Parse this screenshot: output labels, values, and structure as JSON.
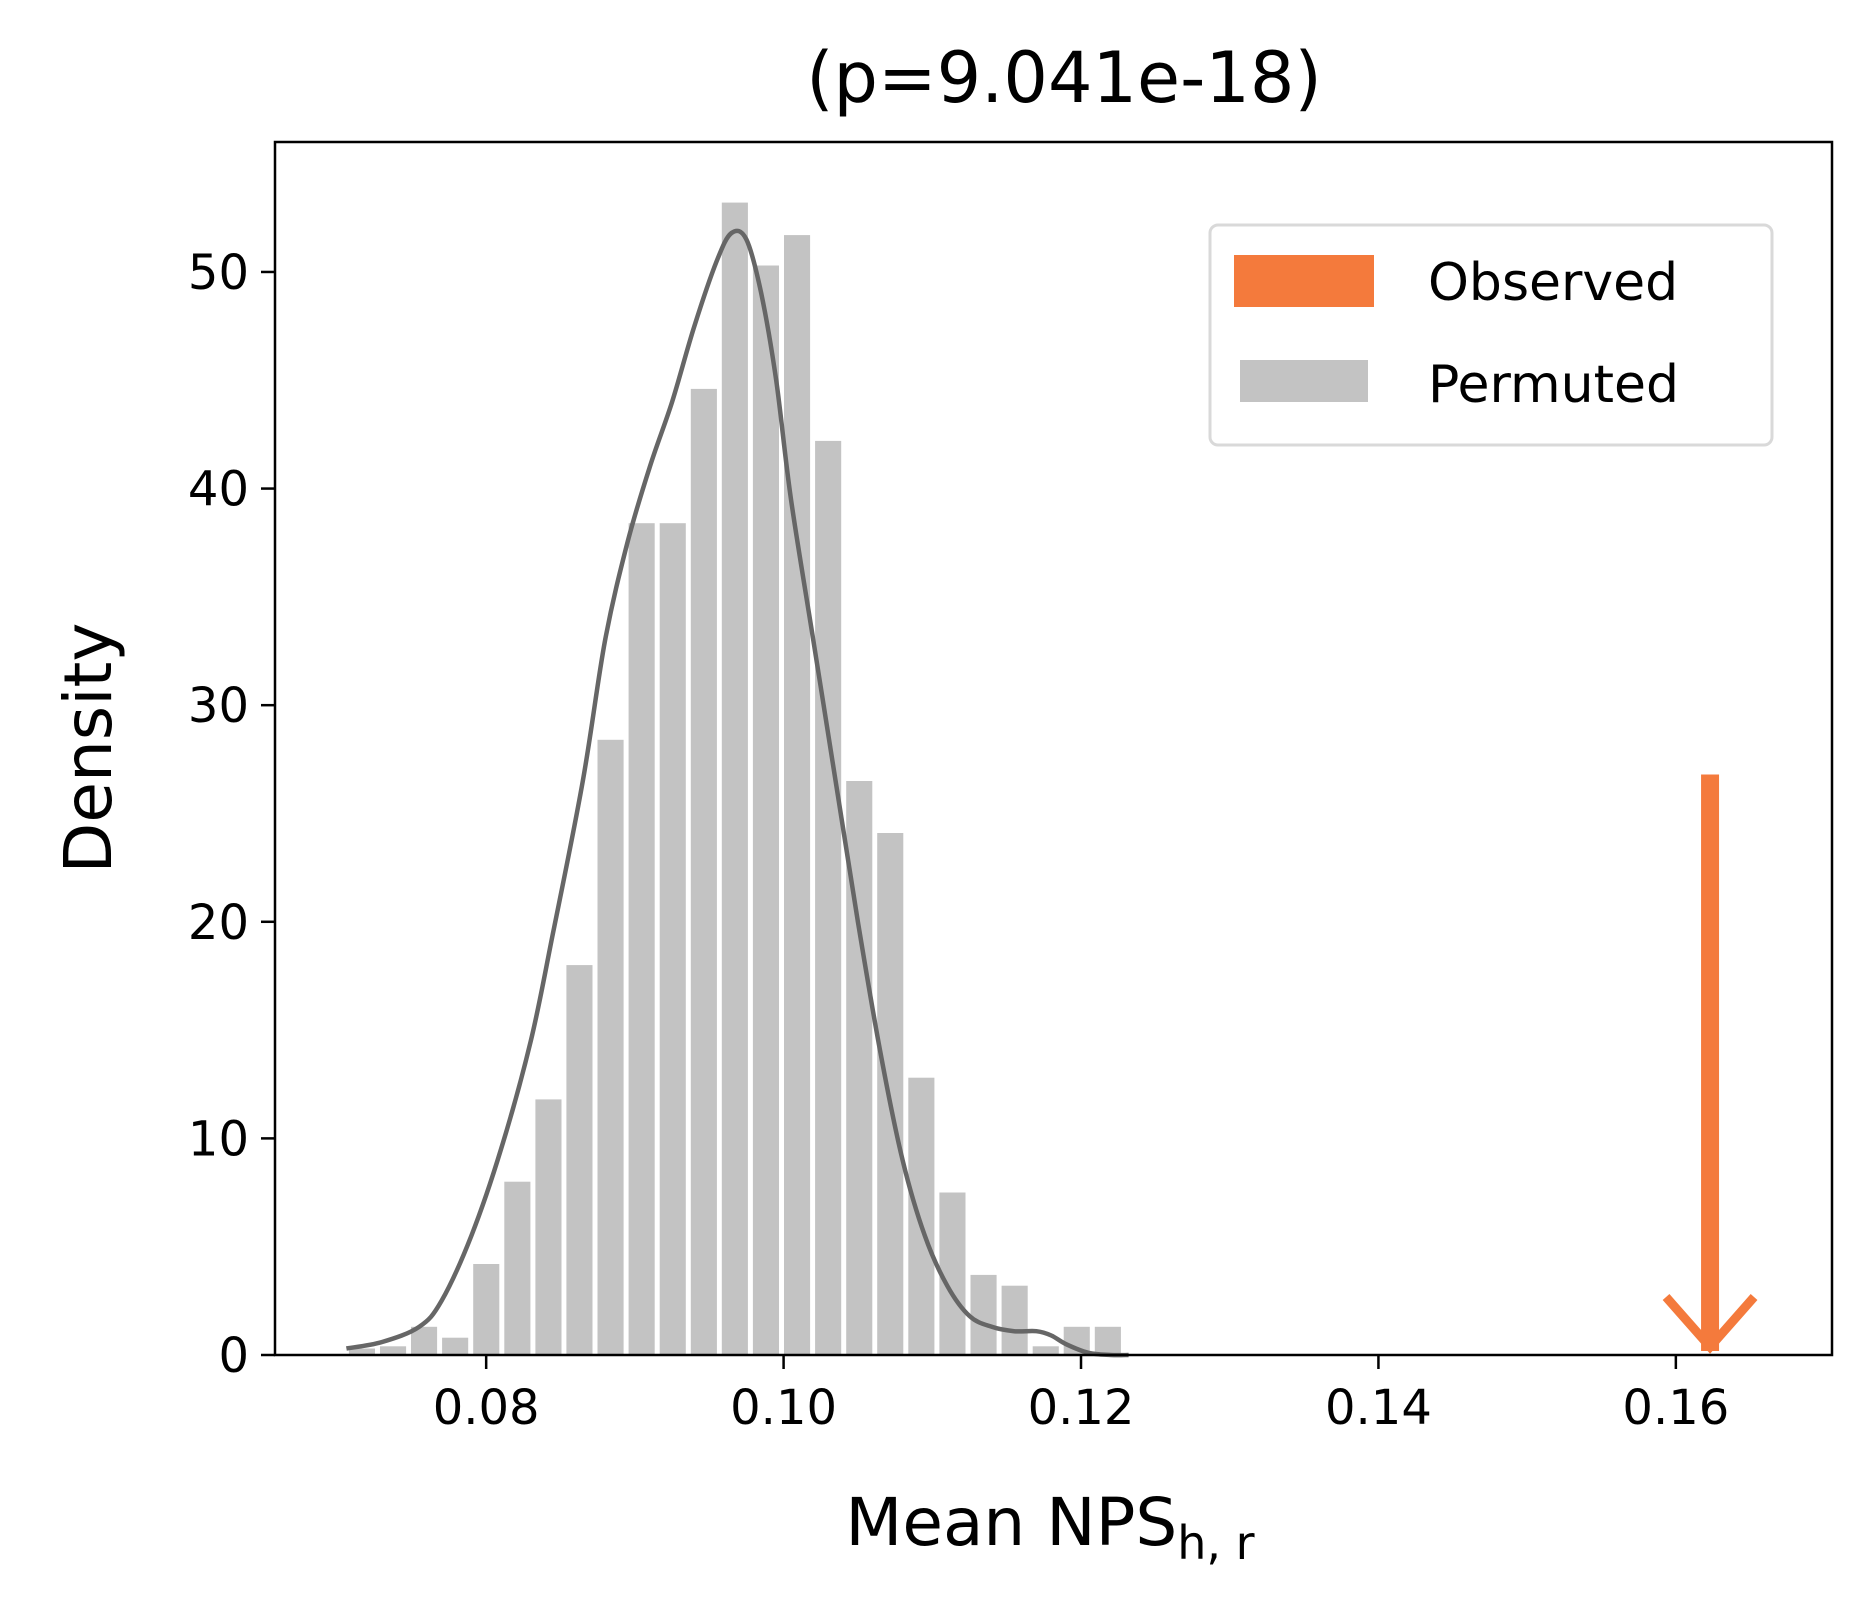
{
  "chart_data": {
    "type": "bar",
    "title": "(p=9.041e-18)",
    "xlabel": "Mean NPS",
    "xlabel_subscript": "h, r",
    "ylabel": "Density",
    "xlim": [
      0.0658,
      0.1705
    ],
    "ylim": [
      0,
      56
    ],
    "xticks": [
      0.08,
      0.1,
      0.12,
      0.14,
      0.16
    ],
    "xtick_labels": [
      "0.08",
      "0.10",
      "0.12",
      "0.14",
      "0.16"
    ],
    "yticks": [
      0,
      10,
      20,
      30,
      40,
      50
    ],
    "ytick_labels": [
      "0",
      "10",
      "20",
      "30",
      "40",
      "50"
    ],
    "grid": false,
    "legend_position": "top-right",
    "legend": [
      {
        "label": "Observed",
        "color": "#f47a3c"
      },
      {
        "label": "Permuted",
        "color": "#c3c3c3"
      }
    ],
    "histogram": {
      "name": "Permuted",
      "color": "#c3c3c3",
      "bin_start": 0.0706,
      "bin_width": 0.00209,
      "values": [
        0.3,
        0.4,
        1.3,
        0.8,
        4.2,
        8.0,
        11.8,
        18.0,
        28.4,
        38.4,
        38.4,
        44.6,
        53.2,
        50.3,
        51.7,
        42.2,
        26.5,
        24.1,
        12.8,
        7.5,
        3.7,
        3.2,
        0.4,
        1.3,
        1.3
      ]
    },
    "kde": {
      "name": "Permuted KDE",
      "color": "#666666",
      "x": [
        0.0706,
        0.073,
        0.0755,
        0.077,
        0.079,
        0.081,
        0.083,
        0.0845,
        0.0865,
        0.088,
        0.0895,
        0.091,
        0.0925,
        0.094,
        0.0955,
        0.0965,
        0.0975,
        0.0985,
        0.0995,
        0.1005,
        0.102,
        0.1035,
        0.105,
        0.1065,
        0.108,
        0.1095,
        0.111,
        0.1125,
        0.114,
        0.1155,
        0.117,
        0.118,
        0.119,
        0.1205,
        0.122,
        0.1232
      ],
      "y": [
        0.3,
        0.6,
        1.3,
        2.5,
        5.5,
        9.5,
        14.5,
        19.5,
        26.5,
        33.0,
        37.5,
        41.0,
        44.0,
        47.5,
        50.5,
        51.8,
        51.5,
        49.0,
        45.0,
        39.5,
        33.0,
        26.5,
        20.0,
        14.0,
        9.0,
        5.5,
        3.2,
        1.8,
        1.3,
        1.1,
        1.1,
        0.9,
        0.5,
        0.1,
        0.0,
        0.0
      ]
    },
    "observed": {
      "name": "Observed",
      "color": "#f47a3c",
      "x": 0.1623,
      "arrow_top": 26.8,
      "arrow_bottom": 0
    }
  }
}
